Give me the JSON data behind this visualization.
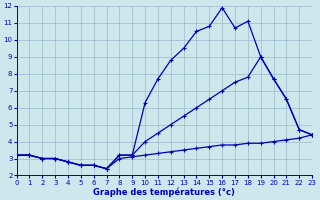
{
  "xlabel": "Graphe des températures (°c)",
  "bg_color": "#cce8ec",
  "line_color": "#0000bb",
  "grid_color": "#99bbcc",
  "xmin": 0,
  "xmax": 23,
  "ymin": 2,
  "ymax": 12,
  "line1_x": [
    0,
    1,
    2,
    3,
    4,
    5,
    6,
    7,
    8,
    9,
    10,
    11,
    12,
    13,
    14,
    15,
    16,
    17,
    18,
    19,
    20,
    21,
    22,
    23
  ],
  "line1_y": [
    3.2,
    3.2,
    3.0,
    3.0,
    2.8,
    2.6,
    2.6,
    2.4,
    3.2,
    3.2,
    6.3,
    7.7,
    8.8,
    9.5,
    10.5,
    10.8,
    11.9,
    10.7,
    11.1,
    9.0,
    7.7,
    6.5,
    4.7,
    4.4
  ],
  "line2_x": [
    0,
    1,
    2,
    3,
    4,
    5,
    6,
    7,
    8,
    9,
    10,
    11,
    12,
    13,
    14,
    15,
    16,
    17,
    18,
    19,
    20,
    21,
    22,
    23
  ],
  "line2_y": [
    3.2,
    3.2,
    3.0,
    3.0,
    2.8,
    2.6,
    2.6,
    2.4,
    3.2,
    3.2,
    4.0,
    4.5,
    5.0,
    5.5,
    6.0,
    6.5,
    7.0,
    7.5,
    7.8,
    9.0,
    7.7,
    6.5,
    4.7,
    4.4
  ],
  "line3_x": [
    0,
    1,
    2,
    3,
    4,
    5,
    6,
    7,
    8,
    9,
    10,
    11,
    12,
    13,
    14,
    15,
    16,
    17,
    18,
    19,
    20,
    21,
    22,
    23
  ],
  "line3_y": [
    3.2,
    3.2,
    3.0,
    3.0,
    2.8,
    2.6,
    2.6,
    2.4,
    3.0,
    3.1,
    3.2,
    3.3,
    3.4,
    3.5,
    3.6,
    3.7,
    3.8,
    3.8,
    3.9,
    3.9,
    4.0,
    4.1,
    4.2,
    4.4
  ],
  "marker": "P",
  "markersize": 2.5,
  "linewidth": 0.9,
  "tick_fontsize": 5.0,
  "xlabel_fontsize": 6.0
}
